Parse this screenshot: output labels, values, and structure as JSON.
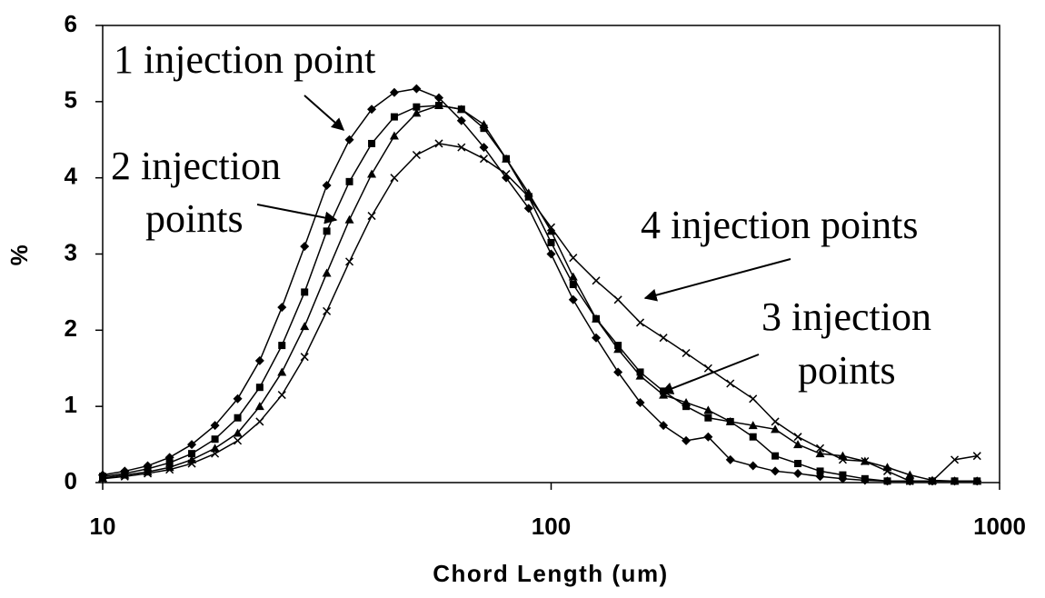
{
  "chart_data": {
    "type": "line",
    "xscale": "log",
    "grid": false,
    "xlabel": "Chord Length (um)",
    "ylabel": "%",
    "xlim": [
      10,
      1000
    ],
    "xticks": [
      10,
      100,
      1000
    ],
    "ylim": [
      0,
      6
    ],
    "yticks": [
      0,
      1,
      2,
      3,
      4,
      5,
      6
    ],
    "x": [
      10,
      11.2,
      12.6,
      14.1,
      15.8,
      17.8,
      20,
      22.4,
      25.1,
      28.2,
      31.6,
      35.5,
      39.8,
      44.7,
      50.1,
      56.2,
      63.1,
      70.8,
      79.4,
      89.1,
      100,
      112,
      126,
      141,
      158,
      178,
      200,
      224,
      251,
      282,
      316,
      355,
      398,
      447,
      501,
      562,
      631,
      708,
      794,
      891
    ],
    "series": [
      {
        "marker": "diamond",
        "color": "#000000",
        "values": [
          0.1,
          0.15,
          0.22,
          0.33,
          0.5,
          0.75,
          1.1,
          1.6,
          2.3,
          3.1,
          3.9,
          4.5,
          4.9,
          5.12,
          5.17,
          5.05,
          4.75,
          4.4,
          4.0,
          3.6,
          3.0,
          2.4,
          1.9,
          1.45,
          1.05,
          0.75,
          0.55,
          0.6,
          0.3,
          0.22,
          0.15,
          0.12,
          0.08,
          0.05,
          0.03,
          0.02,
          0.02,
          0.02,
          0.02,
          0.02
        ]
      },
      {
        "marker": "square",
        "color": "#000000",
        "values": [
          0.08,
          0.12,
          0.18,
          0.26,
          0.38,
          0.57,
          0.85,
          1.25,
          1.8,
          2.5,
          3.3,
          3.95,
          4.45,
          4.8,
          4.93,
          4.95,
          4.9,
          4.65,
          4.25,
          3.75,
          3.15,
          2.6,
          2.15,
          1.8,
          1.45,
          1.2,
          1.0,
          0.85,
          0.8,
          0.6,
          0.35,
          0.25,
          0.15,
          0.1,
          0.05,
          0.02,
          0.02,
          0.02,
          0.02,
          0.02
        ]
      },
      {
        "marker": "triangle",
        "color": "#000000",
        "values": [
          0.06,
          0.1,
          0.14,
          0.2,
          0.3,
          0.45,
          0.65,
          1.0,
          1.45,
          2.05,
          2.75,
          3.45,
          4.05,
          4.55,
          4.85,
          4.95,
          4.9,
          4.7,
          4.25,
          3.8,
          3.3,
          2.7,
          2.15,
          1.75,
          1.4,
          1.15,
          1.05,
          0.95,
          0.8,
          0.75,
          0.7,
          0.5,
          0.38,
          0.35,
          0.28,
          0.2,
          0.1,
          0.03,
          0.02,
          0.02
        ]
      },
      {
        "marker": "x",
        "color": "#000000",
        "values": [
          0.05,
          0.08,
          0.12,
          0.17,
          0.25,
          0.38,
          0.55,
          0.8,
          1.15,
          1.65,
          2.25,
          2.9,
          3.5,
          4.0,
          4.3,
          4.45,
          4.4,
          4.25,
          4.05,
          3.75,
          3.35,
          2.95,
          2.65,
          2.4,
          2.1,
          1.9,
          1.7,
          1.5,
          1.3,
          1.1,
          0.8,
          0.6,
          0.45,
          0.3,
          0.28,
          0.15,
          0.02,
          0.02,
          0.3,
          0.35
        ]
      }
    ],
    "annotations": [
      {
        "lines": [
          "1 injection point"
        ]
      },
      {
        "lines": [
          "2 injection",
          "points"
        ]
      },
      {
        "lines": [
          "4 injection points"
        ]
      },
      {
        "lines": [
          "3 injection",
          "points"
        ]
      }
    ]
  }
}
